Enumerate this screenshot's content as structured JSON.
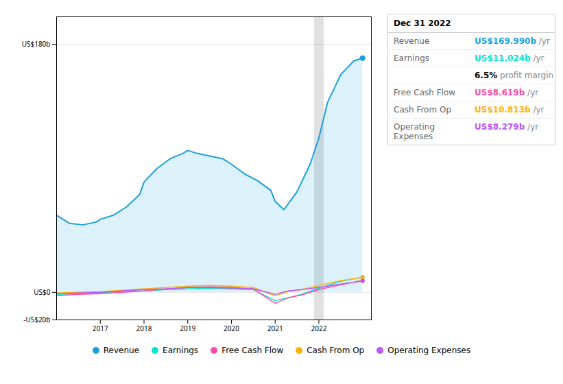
{
  "chart_data": {
    "type": "line",
    "xlim": [
      2016.0,
      2023.2
    ],
    "xticks": [
      2017,
      2018,
      2019,
      2020,
      2021,
      2022
    ],
    "ylim": [
      -20,
      200
    ],
    "yticks": [
      {
        "value": -20,
        "label": "-US$20b"
      },
      {
        "value": 0,
        "label": "US$0"
      },
      {
        "value": 180,
        "label": "US$180b"
      }
    ],
    "grid": true,
    "legend": "bottom",
    "series": [
      {
        "name": "Revenue",
        "color": "#1a9fde",
        "type": "area",
        "x": [
          2016.0,
          2016.3,
          2016.6,
          2016.9,
          2017.0,
          2017.3,
          2017.6,
          2017.9,
          2018.0,
          2018.3,
          2018.6,
          2018.9,
          2019.0,
          2019.2,
          2019.5,
          2019.8,
          2020.0,
          2020.3,
          2020.6,
          2020.9,
          2021.0,
          2021.2,
          2021.5,
          2021.8,
          2022.0,
          2022.2,
          2022.5,
          2022.8,
          2023.0
        ],
        "values": [
          56,
          50,
          49,
          51,
          53,
          56,
          62,
          71,
          80,
          90,
          97,
          101,
          103,
          101,
          99,
          97,
          93,
          86,
          81,
          74,
          66,
          60,
          73,
          93,
          112,
          138,
          158,
          168,
          170
        ]
      },
      {
        "name": "Earnings",
        "color": "#00e5cc",
        "x": [
          2016.0,
          2016.5,
          2017.0,
          2017.5,
          2018.0,
          2018.5,
          2019.0,
          2019.5,
          2020.0,
          2020.5,
          2021.0,
          2021.3,
          2021.6,
          2022.0,
          2022.5,
          2023.0
        ],
        "values": [
          -1.5,
          -1.0,
          -0.5,
          0.5,
          1.0,
          2.0,
          2.5,
          3.0,
          2.5,
          2.0,
          -6.0,
          -4.0,
          -1.5,
          3.0,
          8.0,
          11.0
        ]
      },
      {
        "name": "Free Cash Flow",
        "color": "#ff4da6",
        "x": [
          2016.0,
          2016.5,
          2017.0,
          2017.5,
          2018.0,
          2018.5,
          2019.0,
          2019.5,
          2020.0,
          2020.5,
          2021.0,
          2021.3,
          2021.6,
          2022.0,
          2022.5,
          2023.0
        ],
        "values": [
          -2.5,
          -1.5,
          -1.0,
          0.0,
          1.0,
          2.5,
          3.5,
          4.0,
          3.5,
          2.5,
          -8.0,
          -4.0,
          -2.0,
          2.0,
          5.5,
          8.6
        ]
      },
      {
        "name": "Cash From Op",
        "color": "#ffb300",
        "x": [
          2016.0,
          2016.5,
          2017.0,
          2017.5,
          2018.0,
          2018.5,
          2019.0,
          2019.5,
          2020.0,
          2020.5,
          2021.0,
          2021.3,
          2021.6,
          2022.0,
          2022.5,
          2023.0
        ],
        "values": [
          -0.5,
          0.0,
          0.5,
          1.5,
          2.5,
          3.5,
          4.5,
          5.0,
          4.5,
          3.5,
          -2.5,
          0.5,
          2.0,
          5.0,
          8.5,
          10.8
        ]
      },
      {
        "name": "Operating Expenses",
        "color": "#bb55ff",
        "x": [
          2016.0,
          2016.5,
          2017.0,
          2017.5,
          2018.0,
          2018.5,
          2019.0,
          2019.5,
          2020.0,
          2020.5,
          2021.0,
          2021.3,
          2021.6,
          2022.0,
          2022.5,
          2023.0
        ],
        "values": [
          -1.0,
          -0.5,
          0.0,
          1.0,
          2.0,
          2.5,
          3.5,
          3.5,
          3.0,
          2.5,
          -1.5,
          1.0,
          2.0,
          3.5,
          6.0,
          8.3
        ]
      }
    ],
    "annotations": [
      {
        "x": 2022.0,
        "text": "Dec 31 2022",
        "rows": [
          {
            "label": "Revenue",
            "value": "US$169.990b",
            "color": "#1a9fde",
            "suffix": " /yr"
          },
          {
            "label": "Earnings",
            "value": "US$11.024b",
            "color": "#00e5cc",
            "suffix": " /yr"
          },
          {
            "value": "6.5%",
            "suffix": " profit margin"
          },
          {
            "label": "Free Cash Flow",
            "value": "US$8.619b",
            "color": "#ff4da6",
            "suffix": " /yr"
          },
          {
            "label": "Cash From Op",
            "value": "US$10.813b",
            "color": "#ffb300",
            "suffix": " /yr"
          },
          {
            "label": "Operating Expenses",
            "value": "US$8.279b",
            "color": "#bb55ff",
            "suffix": " /yr"
          }
        ]
      }
    ]
  }
}
